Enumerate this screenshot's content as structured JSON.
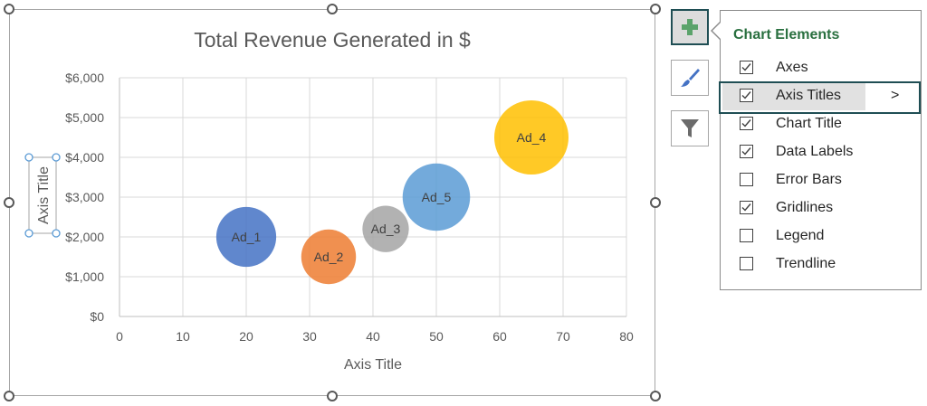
{
  "chart_data": {
    "type": "bubble",
    "title": "Total Revenue Generated in $",
    "xlabel": "Axis Title",
    "ylabel": "Axis Title",
    "xlim": [
      0,
      80
    ],
    "ylim": [
      0,
      6000
    ],
    "x_ticks": [
      "0",
      "10",
      "20",
      "30",
      "40",
      "50",
      "60",
      "70",
      "80"
    ],
    "y_ticks": [
      "$0",
      "$1,000",
      "$2,000",
      "$3,000",
      "$4,000",
      "$5,000",
      "$6,000"
    ],
    "grid": true,
    "points": [
      {
        "label": "Ad_1",
        "x": 20,
        "y": 2000,
        "size": 3,
        "color": "#4472c4"
      },
      {
        "label": "Ad_2",
        "x": 33,
        "y": 1500,
        "size": 2.5,
        "color": "#ed7d31"
      },
      {
        "label": "Ad_3",
        "x": 42,
        "y": 2200,
        "size": 1.8,
        "color": "#a5a5a5"
      },
      {
        "label": "Ad_5",
        "x": 50,
        "y": 3000,
        "size": 3.8,
        "color": "#5b9bd5"
      },
      {
        "label": "Ad_4",
        "x": 65,
        "y": 4500,
        "size": 4.6,
        "color": "#ffc000"
      }
    ]
  },
  "panel": {
    "title": "Chart Elements",
    "chevron": ">",
    "items": [
      {
        "label": "Axes",
        "checked": true
      },
      {
        "label": "Axis Titles",
        "checked": true
      },
      {
        "label": "Chart Title",
        "checked": true
      },
      {
        "label": "Data Labels",
        "checked": true
      },
      {
        "label": "Error Bars",
        "checked": false
      },
      {
        "label": "Gridlines",
        "checked": true
      },
      {
        "label": "Legend",
        "checked": false
      },
      {
        "label": "Trendline",
        "checked": false
      }
    ]
  },
  "buttons": {
    "elements_icon": "plus-icon",
    "styles_icon": "paintbrush-icon",
    "filters_icon": "funnel-icon"
  }
}
